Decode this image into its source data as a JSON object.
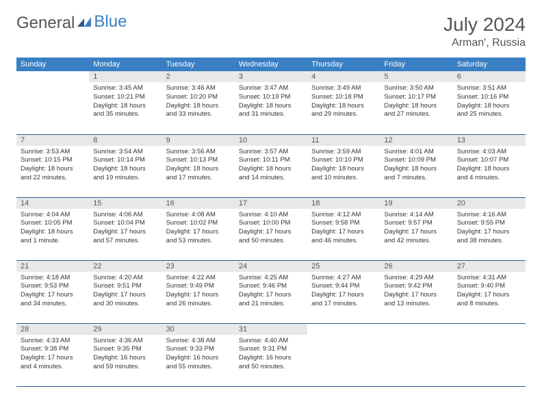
{
  "logo": {
    "part1": "General",
    "part2": "Blue"
  },
  "title": "July 2024",
  "location": "Arman', Russia",
  "weekdays": [
    "Sunday",
    "Monday",
    "Tuesday",
    "Wednesday",
    "Thursday",
    "Friday",
    "Saturday"
  ],
  "colors": {
    "header_bg": "#3a7fc4",
    "header_text": "#ffffff",
    "daynum_bg": "#e8e8e8",
    "border": "#2b5a8a",
    "logo_gray": "#555555",
    "logo_blue": "#3a7fc4"
  },
  "layout": {
    "first_weekday_index": 1,
    "days_in_month": 31,
    "rows": 5,
    "cols": 7
  },
  "days": {
    "1": {
      "sunrise": "3:45 AM",
      "sunset": "10:21 PM",
      "daylight": "18 hours and 35 minutes."
    },
    "2": {
      "sunrise": "3:46 AM",
      "sunset": "10:20 PM",
      "daylight": "18 hours and 33 minutes."
    },
    "3": {
      "sunrise": "3:47 AM",
      "sunset": "10:19 PM",
      "daylight": "18 hours and 31 minutes."
    },
    "4": {
      "sunrise": "3:49 AM",
      "sunset": "10:18 PM",
      "daylight": "18 hours and 29 minutes."
    },
    "5": {
      "sunrise": "3:50 AM",
      "sunset": "10:17 PM",
      "daylight": "18 hours and 27 minutes."
    },
    "6": {
      "sunrise": "3:51 AM",
      "sunset": "10:16 PM",
      "daylight": "18 hours and 25 minutes."
    },
    "7": {
      "sunrise": "3:53 AM",
      "sunset": "10:15 PM",
      "daylight": "18 hours and 22 minutes."
    },
    "8": {
      "sunrise": "3:54 AM",
      "sunset": "10:14 PM",
      "daylight": "18 hours and 19 minutes."
    },
    "9": {
      "sunrise": "3:56 AM",
      "sunset": "10:13 PM",
      "daylight": "18 hours and 17 minutes."
    },
    "10": {
      "sunrise": "3:57 AM",
      "sunset": "10:11 PM",
      "daylight": "18 hours and 14 minutes."
    },
    "11": {
      "sunrise": "3:59 AM",
      "sunset": "10:10 PM",
      "daylight": "18 hours and 10 minutes."
    },
    "12": {
      "sunrise": "4:01 AM",
      "sunset": "10:09 PM",
      "daylight": "18 hours and 7 minutes."
    },
    "13": {
      "sunrise": "4:03 AM",
      "sunset": "10:07 PM",
      "daylight": "18 hours and 4 minutes."
    },
    "14": {
      "sunrise": "4:04 AM",
      "sunset": "10:05 PM",
      "daylight": "18 hours and 1 minute."
    },
    "15": {
      "sunrise": "4:06 AM",
      "sunset": "10:04 PM",
      "daylight": "17 hours and 57 minutes."
    },
    "16": {
      "sunrise": "4:08 AM",
      "sunset": "10:02 PM",
      "daylight": "17 hours and 53 minutes."
    },
    "17": {
      "sunrise": "4:10 AM",
      "sunset": "10:00 PM",
      "daylight": "17 hours and 50 minutes."
    },
    "18": {
      "sunrise": "4:12 AM",
      "sunset": "9:58 PM",
      "daylight": "17 hours and 46 minutes."
    },
    "19": {
      "sunrise": "4:14 AM",
      "sunset": "9:57 PM",
      "daylight": "17 hours and 42 minutes."
    },
    "20": {
      "sunrise": "4:16 AM",
      "sunset": "9:55 PM",
      "daylight": "17 hours and 38 minutes."
    },
    "21": {
      "sunrise": "4:18 AM",
      "sunset": "9:53 PM",
      "daylight": "17 hours and 34 minutes."
    },
    "22": {
      "sunrise": "4:20 AM",
      "sunset": "9:51 PM",
      "daylight": "17 hours and 30 minutes."
    },
    "23": {
      "sunrise": "4:22 AM",
      "sunset": "9:49 PM",
      "daylight": "17 hours and 26 minutes."
    },
    "24": {
      "sunrise": "4:25 AM",
      "sunset": "9:46 PM",
      "daylight": "17 hours and 21 minutes."
    },
    "25": {
      "sunrise": "4:27 AM",
      "sunset": "9:44 PM",
      "daylight": "17 hours and 17 minutes."
    },
    "26": {
      "sunrise": "4:29 AM",
      "sunset": "9:42 PM",
      "daylight": "17 hours and 13 minutes."
    },
    "27": {
      "sunrise": "4:31 AM",
      "sunset": "9:40 PM",
      "daylight": "17 hours and 8 minutes."
    },
    "28": {
      "sunrise": "4:33 AM",
      "sunset": "9:38 PM",
      "daylight": "17 hours and 4 minutes."
    },
    "29": {
      "sunrise": "4:36 AM",
      "sunset": "9:35 PM",
      "daylight": "16 hours and 59 minutes."
    },
    "30": {
      "sunrise": "4:38 AM",
      "sunset": "9:33 PM",
      "daylight": "16 hours and 55 minutes."
    },
    "31": {
      "sunrise": "4:40 AM",
      "sunset": "9:31 PM",
      "daylight": "16 hours and 50 minutes."
    }
  },
  "labels": {
    "sunrise": "Sunrise:",
    "sunset": "Sunset:",
    "daylight": "Daylight:"
  }
}
